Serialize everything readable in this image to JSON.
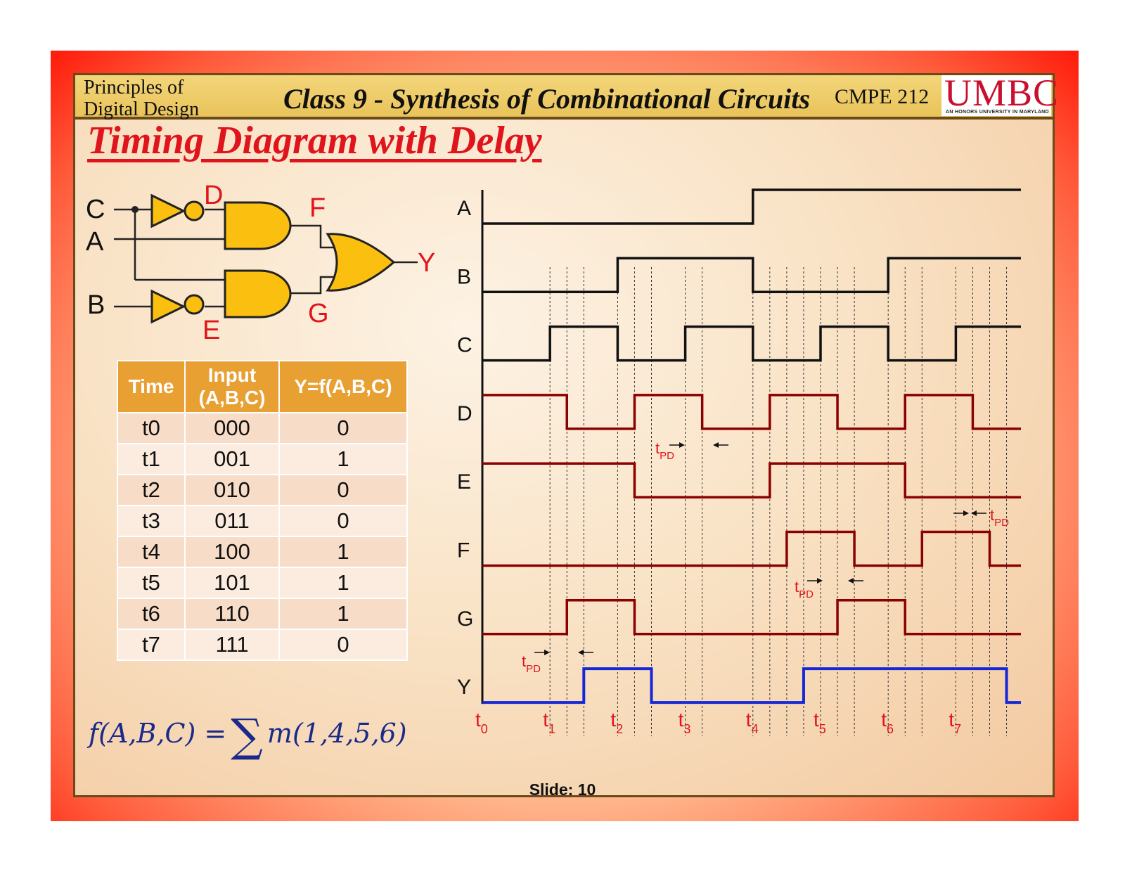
{
  "header": {
    "course_line1": "Principles of",
    "course_line2": "Digital Design",
    "class_title": "Class 9 - Synthesis of Combinational Circuits",
    "course_code": "CMPE 212",
    "logo_text": "UMBC",
    "logo_tagline": "AN HONORS UNIVERSITY IN MARYLAND"
  },
  "slide_title": "Timing Diagram with Delay",
  "circuit": {
    "inputs": [
      "C",
      "A",
      "B"
    ],
    "nodes": [
      "D",
      "E",
      "F",
      "G"
    ],
    "output": "Y"
  },
  "truth_table": {
    "headers": [
      "Time",
      "Input (A,B,C)",
      "Y=f(A,B,C)"
    ],
    "rows": [
      [
        "t0",
        "000",
        "0"
      ],
      [
        "t1",
        "001",
        "1"
      ],
      [
        "t2",
        "010",
        "0"
      ],
      [
        "t3",
        "011",
        "0"
      ],
      [
        "t4",
        "100",
        "1"
      ],
      [
        "t5",
        "101",
        "1"
      ],
      [
        "t6",
        "110",
        "1"
      ],
      [
        "t7",
        "111",
        "0"
      ]
    ]
  },
  "formula": {
    "lhs": "f(A,B,C) =",
    "sum_symbol": "∑",
    "rhs": "m(1,4,5,6)"
  },
  "timing": {
    "time_labels": [
      "0",
      "1",
      "2",
      "3",
      "4",
      "5",
      "6",
      "7"
    ],
    "time_prefix": "t",
    "pd_label": "PD",
    "delay_units": 0.25,
    "colors": {
      "input": "#111111",
      "internal": "#8b0000",
      "output": "#1428d8",
      "label": "#e0141c"
    },
    "signals": [
      {
        "name": "A",
        "kind": "input",
        "initial": 0,
        "transitions": [
          4
        ]
      },
      {
        "name": "B",
        "kind": "input",
        "initial": 0,
        "transitions": [
          2,
          4,
          6
        ]
      },
      {
        "name": "C",
        "kind": "input",
        "initial": 0,
        "transitions": [
          1,
          2,
          3,
          4,
          5,
          6,
          7
        ]
      },
      {
        "name": "D",
        "kind": "internal",
        "initial": 1,
        "transitions": [
          1.25,
          2.25,
          3.25,
          4.25,
          5.25,
          6.25,
          7.25
        ]
      },
      {
        "name": "E",
        "kind": "internal",
        "initial": 1,
        "transitions": [
          2.25,
          4.25,
          6.25
        ]
      },
      {
        "name": "F",
        "kind": "internal",
        "initial": 0,
        "transitions": [
          4.5,
          5.5,
          6.5,
          7.5
        ]
      },
      {
        "name": "G",
        "kind": "internal",
        "initial": 0,
        "transitions": [
          1.25,
          2.25,
          5.25,
          6.25
        ]
      },
      {
        "name": "Y",
        "kind": "output",
        "initial": 0,
        "transitions": [
          1.5,
          2.5,
          4.75,
          7.75
        ]
      }
    ]
  },
  "slide_number": "Slide: 10"
}
